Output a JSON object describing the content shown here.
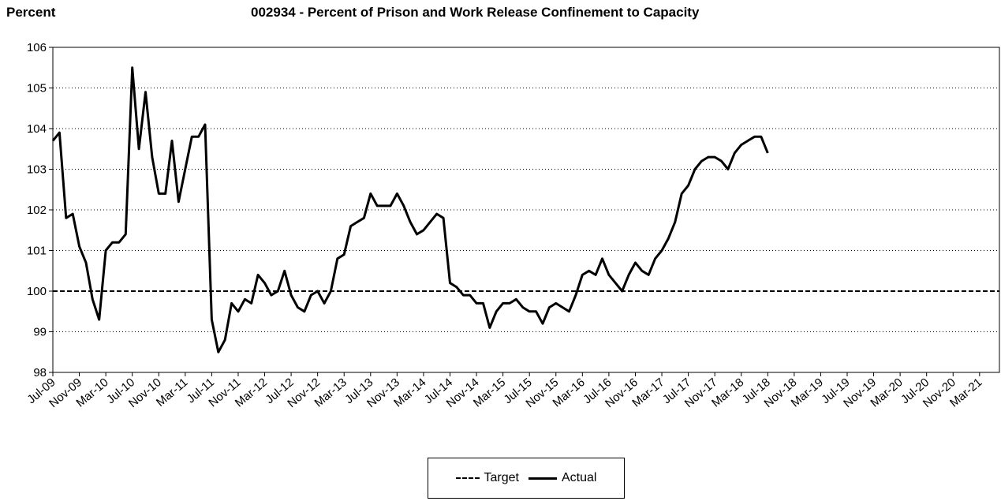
{
  "header": {
    "ylabel": "Percent",
    "title": "002934 - Percent of Prison and Work Release Confinement to Capacity"
  },
  "chart_data": {
    "type": "line",
    "title": "002934 - Percent of Prison and Work Release Confinement to Capacity",
    "ylabel": "Percent",
    "xlabel": "",
    "ylim": [
      98,
      106
    ],
    "yticks": [
      98,
      99,
      100,
      101,
      102,
      103,
      104,
      105,
      106
    ],
    "grid": "horizontal dotted",
    "legend_position": "bottom-center",
    "x_tick_labels": [
      "Jul-09",
      "Nov-09",
      "Mar-10",
      "Jul-10",
      "Nov-10",
      "Mar-11",
      "Jul-11",
      "Nov-11",
      "Mar-12",
      "Jul-12",
      "Nov-12",
      "Mar-13",
      "Jul-13",
      "Nov-13",
      "Mar-14",
      "Jul-14",
      "Nov-14",
      "Mar-15",
      "Jul-15",
      "Nov-15",
      "Mar-16",
      "Jul-16",
      "Nov-16",
      "Mar-17",
      "Jul-17",
      "Nov-17",
      "Mar-18",
      "Jul-18",
      "Nov-18",
      "Mar-19",
      "Jul-19",
      "Nov-19",
      "Mar-20",
      "Jul-20",
      "Nov-20",
      "Mar-21"
    ],
    "x_range": [
      "Jul-09",
      "Jun-21"
    ],
    "series": [
      {
        "name": "Target",
        "style": "dashed",
        "color": "#000000",
        "x": [
          "Jul-09",
          "Jun-21"
        ],
        "values": [
          100,
          100
        ]
      },
      {
        "name": "Actual",
        "style": "solid",
        "color": "#000000",
        "x_start": "Jul-09",
        "x_step": "month",
        "values": [
          103.7,
          103.9,
          101.8,
          101.9,
          101.1,
          100.7,
          99.8,
          99.3,
          101.0,
          101.2,
          101.2,
          101.4,
          105.5,
          103.5,
          104.9,
          103.3,
          102.4,
          102.4,
          103.7,
          102.2,
          103.0,
          103.8,
          103.8,
          104.1,
          99.3,
          98.5,
          98.8,
          99.7,
          99.5,
          99.8,
          99.7,
          100.4,
          100.2,
          99.9,
          100.0,
          100.5,
          99.9,
          99.6,
          99.5,
          99.9,
          100.0,
          99.7,
          100.0,
          100.8,
          100.9,
          101.6,
          101.7,
          101.8,
          102.4,
          102.1,
          102.1,
          102.1,
          102.4,
          102.1,
          101.7,
          101.4,
          101.5,
          101.7,
          101.9,
          101.8,
          100.2,
          100.1,
          99.9,
          99.9,
          99.7,
          99.7,
          99.1,
          99.5,
          99.7,
          99.7,
          99.8,
          99.6,
          99.5,
          99.5,
          99.2,
          99.6,
          99.7,
          99.6,
          99.5,
          99.9,
          100.4,
          100.5,
          100.4,
          100.8,
          100.4,
          100.2,
          100.0,
          100.4,
          100.7,
          100.5,
          100.4,
          100.8,
          101.0,
          101.3,
          101.7,
          102.4,
          102.6,
          103.0,
          103.2,
          103.3,
          103.3,
          103.2,
          103.0,
          103.4,
          103.6,
          103.7,
          103.8,
          103.8,
          103.4
        ]
      }
    ]
  },
  "legend": {
    "target_label": "Target",
    "actual_label": "Actual"
  }
}
